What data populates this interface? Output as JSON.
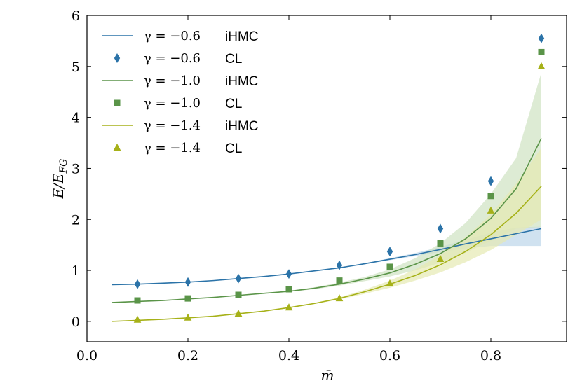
{
  "chart_data": {
    "type": "line",
    "title": "",
    "xlabel": "m̄",
    "ylabel": "E/E_FG",
    "xlim": [
      0.0,
      0.95
    ],
    "ylim": [
      -0.4,
      6.0
    ],
    "xticks": [
      0.0,
      0.2,
      0.4,
      0.6,
      0.8
    ],
    "xtick_labels": [
      "0.0",
      "0.2",
      "0.4",
      "0.6",
      "0.8"
    ],
    "yticks": [
      0,
      1,
      2,
      3,
      4,
      5,
      6
    ],
    "ytick_labels": [
      "0",
      "1",
      "2",
      "3",
      "4",
      "5",
      "6"
    ],
    "legend_position": "top-left",
    "series": [
      {
        "name": "γ = −0.6 iHMC",
        "gamma_label": "γ = −0.6",
        "method": "iHMC",
        "kind": "line",
        "color": "#2b73a8",
        "x": [
          0.05,
          0.1,
          0.15,
          0.2,
          0.25,
          0.3,
          0.35,
          0.4,
          0.45,
          0.5,
          0.55,
          0.6,
          0.65,
          0.7,
          0.75,
          0.8,
          0.85,
          0.9
        ],
        "y": [
          0.72,
          0.73,
          0.75,
          0.77,
          0.8,
          0.84,
          0.88,
          0.93,
          0.99,
          1.05,
          1.13,
          1.22,
          1.31,
          1.41,
          1.52,
          1.62,
          1.72,
          1.82
        ],
        "band_lower": [
          0.72,
          0.73,
          0.75,
          0.77,
          0.8,
          0.84,
          0.88,
          0.93,
          0.99,
          1.05,
          1.12,
          1.2,
          1.28,
          1.36,
          1.43,
          1.48,
          1.48,
          1.48
        ],
        "band_upper": [
          0.72,
          0.73,
          0.75,
          0.77,
          0.8,
          0.84,
          0.88,
          0.93,
          0.99,
          1.05,
          1.14,
          1.24,
          1.34,
          1.46,
          1.6,
          1.74,
          1.84,
          1.86
        ],
        "band_color": "#bcd5ea"
      },
      {
        "name": "γ = −0.6 CL",
        "gamma_label": "γ = −0.6",
        "method": "CL",
        "kind": "points",
        "marker": "diamond",
        "color": "#2b73a8",
        "x": [
          0.1,
          0.2,
          0.3,
          0.4,
          0.5,
          0.6,
          0.7,
          0.8,
          0.9
        ],
        "y": [
          0.73,
          0.77,
          0.84,
          0.93,
          1.1,
          1.37,
          1.82,
          2.75,
          5.55
        ]
      },
      {
        "name": "γ = −1.0 iHMC",
        "gamma_label": "γ = −1.0",
        "method": "iHMC",
        "kind": "line",
        "color": "#5a9448",
        "x": [
          0.05,
          0.1,
          0.15,
          0.2,
          0.25,
          0.3,
          0.35,
          0.4,
          0.45,
          0.5,
          0.55,
          0.6,
          0.65,
          0.7,
          0.75,
          0.8,
          0.85,
          0.9
        ],
        "y": [
          0.37,
          0.39,
          0.41,
          0.44,
          0.47,
          0.51,
          0.55,
          0.59,
          0.65,
          0.73,
          0.83,
          0.95,
          1.12,
          1.33,
          1.62,
          2.02,
          2.6,
          3.59
        ],
        "band_lower": [
          0.37,
          0.39,
          0.41,
          0.44,
          0.47,
          0.51,
          0.55,
          0.58,
          0.63,
          0.7,
          0.79,
          0.88,
          1.0,
          1.15,
          1.35,
          1.58,
          1.82,
          1.85
        ],
        "band_upper": [
          0.37,
          0.39,
          0.41,
          0.44,
          0.47,
          0.51,
          0.55,
          0.6,
          0.67,
          0.76,
          0.87,
          1.02,
          1.24,
          1.53,
          1.93,
          2.5,
          3.2,
          4.88
        ],
        "band_color": "#cfe2c2"
      },
      {
        "name": "γ = −1.0 CL",
        "gamma_label": "γ = −1.0",
        "method": "CL",
        "kind": "points",
        "marker": "square",
        "color": "#5a9448",
        "x": [
          0.1,
          0.2,
          0.3,
          0.4,
          0.5,
          0.6,
          0.7,
          0.8,
          0.9
        ],
        "y": [
          0.41,
          0.45,
          0.52,
          0.63,
          0.8,
          1.07,
          1.53,
          2.46,
          5.28
        ]
      },
      {
        "name": "γ = −1.4 iHMC",
        "gamma_label": "γ = −1.4",
        "method": "iHMC",
        "kind": "line",
        "color": "#a6b118",
        "x": [
          0.05,
          0.1,
          0.15,
          0.2,
          0.25,
          0.3,
          0.35,
          0.4,
          0.45,
          0.5,
          0.55,
          0.6,
          0.65,
          0.7,
          0.75,
          0.8,
          0.85,
          0.9
        ],
        "y": [
          0.0,
          0.02,
          0.04,
          0.07,
          0.1,
          0.15,
          0.2,
          0.27,
          0.35,
          0.45,
          0.58,
          0.73,
          0.9,
          1.11,
          1.37,
          1.7,
          2.12,
          2.65
        ],
        "band_lower": [
          0.0,
          0.02,
          0.04,
          0.07,
          0.1,
          0.15,
          0.2,
          0.26,
          0.34,
          0.43,
          0.54,
          0.66,
          0.8,
          0.96,
          1.16,
          1.4,
          1.7,
          2.0
        ],
        "band_upper": [
          0.0,
          0.02,
          0.04,
          0.07,
          0.1,
          0.15,
          0.2,
          0.28,
          0.36,
          0.47,
          0.62,
          0.8,
          1.02,
          1.3,
          1.65,
          2.1,
          2.7,
          3.4
        ],
        "band_color": "#e6e9b2"
      },
      {
        "name": "γ = −1.4 CL",
        "gamma_label": "γ = −1.4",
        "method": "CL",
        "kind": "points",
        "marker": "triangle",
        "color": "#a6b118",
        "x": [
          0.1,
          0.2,
          0.3,
          0.4,
          0.5,
          0.6,
          0.7,
          0.8,
          0.9
        ],
        "y": [
          0.03,
          0.07,
          0.15,
          0.27,
          0.45,
          0.74,
          1.22,
          2.17,
          5.0
        ]
      }
    ]
  }
}
